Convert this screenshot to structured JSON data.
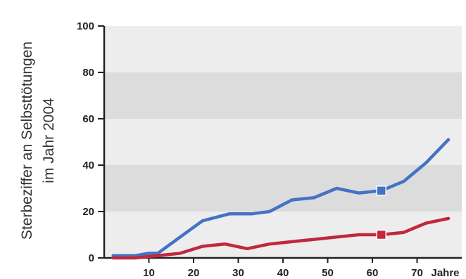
{
  "chart_data": {
    "type": "line",
    "title": "",
    "ylabel_lines": [
      "Sterbeziffer an Selbsttötungen",
      "im Jahr 2004"
    ],
    "xlabel": "",
    "x_unit_label": "Jahre",
    "xlim": [
      0,
      80
    ],
    "ylim": [
      0,
      100
    ],
    "x_ticks": [
      10,
      20,
      30,
      40,
      50,
      60,
      70
    ],
    "y_ticks": [
      0,
      20,
      40,
      60,
      80,
      100
    ],
    "bands": "alternating light gray bands between y gridlines",
    "band_colors": [
      "#ededed",
      "#dcdcdc"
    ],
    "legend": "none",
    "series": [
      {
        "color": "#4472c4",
        "marker_at_x": 62,
        "points": [
          [
            2,
            1
          ],
          [
            7,
            1
          ],
          [
            10,
            2
          ],
          [
            12,
            2
          ],
          [
            17,
            9
          ],
          [
            22,
            16
          ],
          [
            28,
            19
          ],
          [
            33,
            19
          ],
          [
            37,
            20
          ],
          [
            42,
            25
          ],
          [
            47,
            26
          ],
          [
            52,
            30
          ],
          [
            57,
            28
          ],
          [
            62,
            29
          ],
          [
            67,
            33
          ],
          [
            72,
            41
          ],
          [
            77,
            51
          ]
        ]
      },
      {
        "color": "#c0283e",
        "marker_at_x": 62,
        "points": [
          [
            2,
            0
          ],
          [
            7,
            0
          ],
          [
            12,
            1
          ],
          [
            17,
            2
          ],
          [
            22,
            5
          ],
          [
            27,
            6
          ],
          [
            32,
            4
          ],
          [
            37,
            6
          ],
          [
            42,
            7
          ],
          [
            47,
            8
          ],
          [
            52,
            9
          ],
          [
            57,
            10
          ],
          [
            62,
            10
          ],
          [
            67,
            11
          ],
          [
            72,
            15
          ],
          [
            77,
            17
          ]
        ]
      }
    ]
  }
}
